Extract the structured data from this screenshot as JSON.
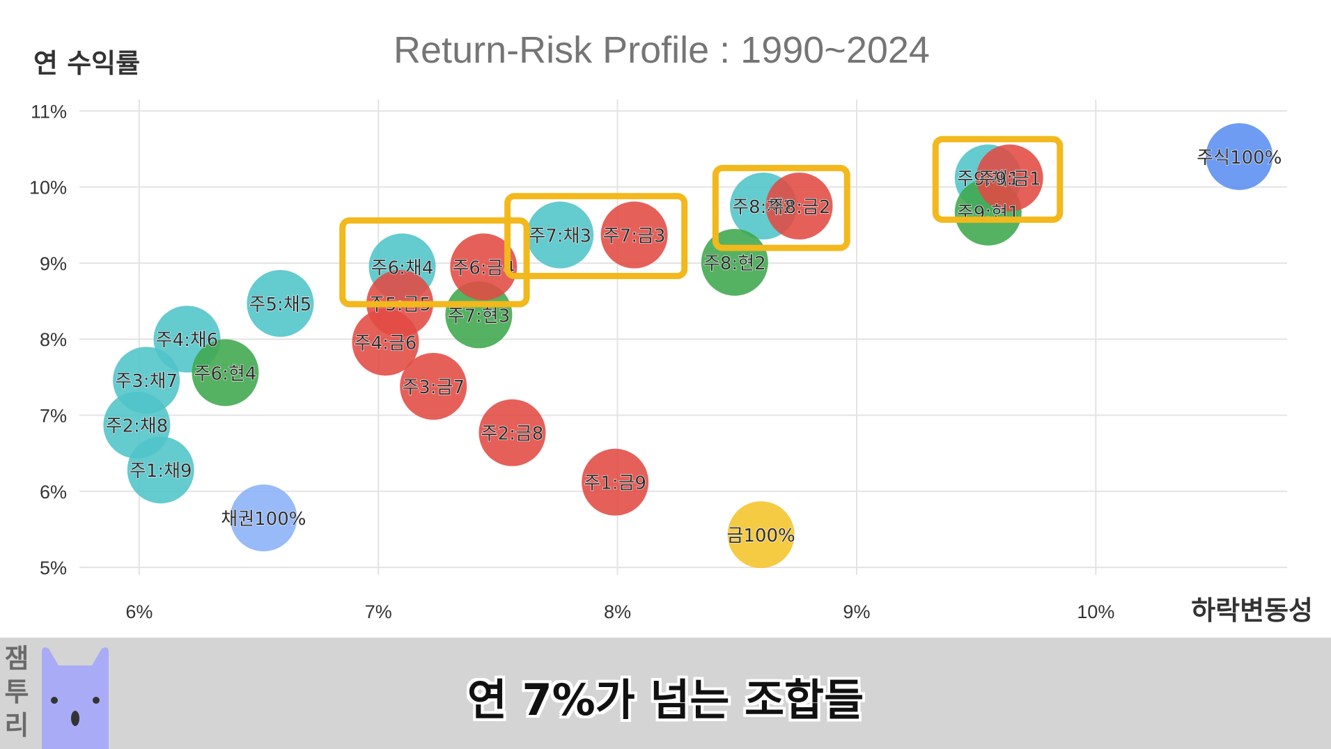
{
  "chart_data": {
    "type": "scatter",
    "title": "Return-Risk Profile : 1990~2024",
    "xlabel": "하락변동성",
    "ylabel": "연 수익률",
    "xlim": [
      5.75,
      10.8
    ],
    "ylim": [
      4.9,
      11.15
    ],
    "x_ticks": [
      6,
      7,
      8,
      9,
      10
    ],
    "x_tick_labels": [
      "6%",
      "7%",
      "8%",
      "9%",
      "10%"
    ],
    "y_ticks": [
      5,
      6,
      7,
      8,
      9,
      10,
      11
    ],
    "y_tick_labels": [
      "5%",
      "6%",
      "7%",
      "8%",
      "9%",
      "10%",
      "11%"
    ],
    "grid": true,
    "series_colors": {
      "bond_mix": "#4fc4c8",
      "gold_mix": "#e34a43",
      "cash_mix": "#3fa74d",
      "stock_only": "#5a8ef0",
      "bond_only": "#8ab0f8",
      "gold_only": "#f5c42a"
    },
    "points": [
      {
        "label": "주1:채9",
        "x": 6.09,
        "y": 6.28,
        "group": "bond_mix"
      },
      {
        "label": "주2:채8",
        "x": 5.99,
        "y": 6.87,
        "group": "bond_mix"
      },
      {
        "label": "주3:채7",
        "x": 6.03,
        "y": 7.46,
        "group": "bond_mix"
      },
      {
        "label": "주4:채6",
        "x": 6.2,
        "y": 8.0,
        "group": "bond_mix"
      },
      {
        "label": "주5:채5",
        "x": 6.59,
        "y": 8.47,
        "group": "bond_mix"
      },
      {
        "label": "주6:채4",
        "x": 7.1,
        "y": 8.95,
        "group": "bond_mix"
      },
      {
        "label": "주7:채3",
        "x": 7.76,
        "y": 9.37,
        "group": "bond_mix"
      },
      {
        "label": "주8:채2",
        "x": 8.61,
        "y": 9.75,
        "group": "bond_mix"
      },
      {
        "label": "주9:채1",
        "x": 9.55,
        "y": 10.12,
        "group": "bond_mix"
      },
      {
        "label": "주6:현4",
        "x": 6.36,
        "y": 7.56,
        "group": "cash_mix"
      },
      {
        "label": "주7:현3",
        "x": 7.42,
        "y": 8.32,
        "group": "cash_mix"
      },
      {
        "label": "주8:현2",
        "x": 8.49,
        "y": 9.01,
        "group": "cash_mix"
      },
      {
        "label": "주9:현1",
        "x": 9.55,
        "y": 9.67,
        "group": "cash_mix"
      },
      {
        "label": "주1:금9",
        "x": 7.99,
        "y": 6.12,
        "group": "gold_mix"
      },
      {
        "label": "주2:금8",
        "x": 7.56,
        "y": 6.77,
        "group": "gold_mix"
      },
      {
        "label": "주3:금7",
        "x": 7.23,
        "y": 7.38,
        "group": "gold_mix"
      },
      {
        "label": "주4:금6",
        "x": 7.03,
        "y": 7.96,
        "group": "gold_mix"
      },
      {
        "label": "주5:금5",
        "x": 7.09,
        "y": 8.47,
        "group": "gold_mix"
      },
      {
        "label": "주6:금4",
        "x": 7.44,
        "y": 8.95,
        "group": "gold_mix"
      },
      {
        "label": "주7:금3",
        "x": 8.07,
        "y": 9.37,
        "group": "gold_mix"
      },
      {
        "label": "주8:금2",
        "x": 8.76,
        "y": 9.75,
        "group": "gold_mix"
      },
      {
        "label": "주9:금1",
        "x": 9.64,
        "y": 10.12,
        "group": "gold_mix"
      },
      {
        "label": "주식100%",
        "x": 10.6,
        "y": 10.4,
        "group": "stock_only"
      },
      {
        "label": "채권100%",
        "x": 6.52,
        "y": 5.65,
        "group": "bond_only"
      },
      {
        "label": "금100%",
        "x": 8.6,
        "y": 5.43,
        "group": "gold_only"
      }
    ],
    "highlight_boxes": [
      {
        "x_range": [
          6.85,
          7.62
        ],
        "y_range": [
          8.46,
          9.56
        ]
      },
      {
        "x_range": [
          7.54,
          8.28
        ],
        "y_range": [
          8.83,
          9.88
        ]
      },
      {
        "x_range": [
          8.41,
          8.96
        ],
        "y_range": [
          9.2,
          10.25
        ]
      },
      {
        "x_range": [
          9.33,
          9.85
        ],
        "y_range": [
          9.57,
          10.63
        ]
      }
    ],
    "highlight_color": "#f2b81c"
  },
  "caption": "연 7%가 넘는 조합들",
  "brand": [
    "잼",
    "투",
    "리"
  ],
  "mascot_icon": "bunny-icon"
}
